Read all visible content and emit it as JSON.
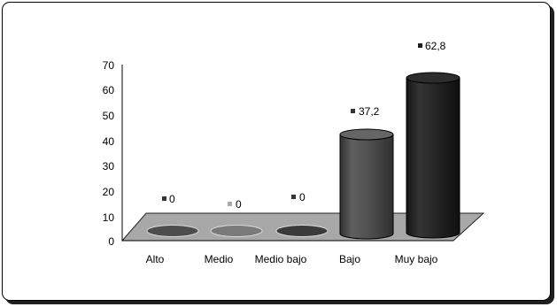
{
  "chart_data": {
    "type": "bar",
    "categories": [
      "Alto",
      "Medio",
      "Medio bajo",
      "Bajo",
      "Muy bajo"
    ],
    "values": [
      0,
      0,
      0,
      37.2,
      62.8
    ],
    "value_labels": [
      "0",
      "0",
      "0",
      "37,2",
      "62,8"
    ],
    "title": "",
    "xlabel": "",
    "ylabel": "",
    "ylim": [
      0,
      70
    ],
    "yticks": [
      "0",
      "10",
      "20",
      "30",
      "40",
      "50",
      "60",
      "70"
    ],
    "grid": false,
    "style": "3d-cylinder",
    "colors": {
      "floor": "#a8a8a8",
      "disk": "#4d4d4d",
      "bar_bajo": "#4b4b4b",
      "bar_muy_bajo": "#1f1f1f",
      "marker_muted": "#a9a9a9",
      "marker_dark": "#353535"
    }
  }
}
